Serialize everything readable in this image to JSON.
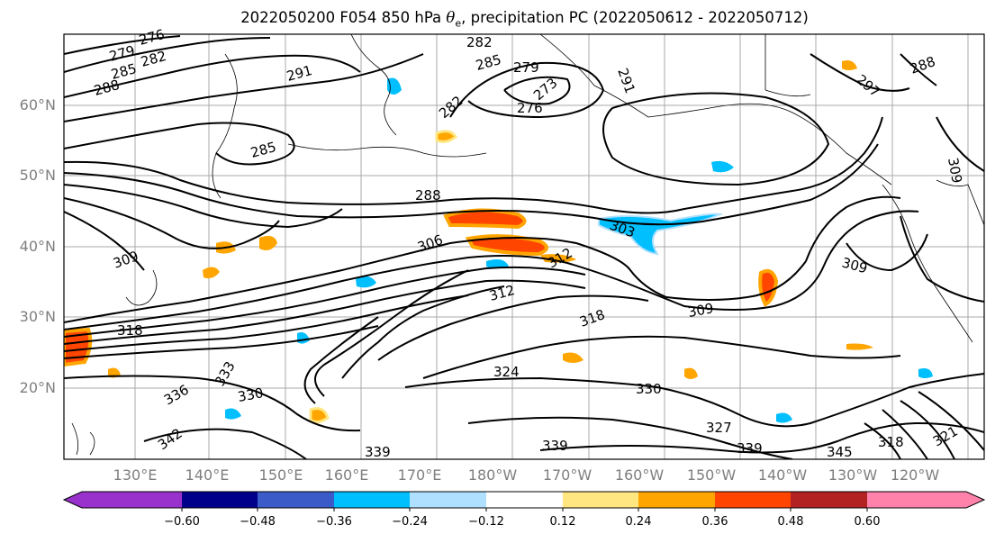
{
  "title": {
    "run": "2022050200 F054 850 hPa",
    "var_symbol": "θ",
    "var_sub": "e",
    "rest": ", precipitation PC (2022050612 - 2022050712)"
  },
  "map": {
    "lat_labels": [
      "60°N",
      "50°N",
      "40°N",
      "30°N",
      "20°N"
    ],
    "lon_labels": [
      "130°E",
      "140°E",
      "150°E",
      "160°E",
      "170°E",
      "180°W",
      "170°W",
      "160°W",
      "150°W",
      "140°W",
      "130°W",
      "120°W"
    ],
    "contour_labels": [
      "279",
      "276",
      "285",
      "282",
      "288",
      "291",
      "282",
      "285",
      "279",
      "273",
      "276",
      "282",
      "291",
      "297",
      "285",
      "288",
      "288",
      "306",
      "303",
      "309",
      "312",
      "318",
      "309",
      "309",
      "312",
      "318",
      "324",
      "330",
      "327",
      "336",
      "330",
      "333",
      "342",
      "339",
      "339",
      "345",
      "339",
      "318",
      "321",
      "309"
    ]
  },
  "colorbar": {
    "ticks": [
      "−0.60",
      "−0.48",
      "−0.36",
      "−0.24",
      "−0.12",
      "0.12",
      "0.24",
      "0.36",
      "0.48",
      "0.60"
    ],
    "colors": [
      "#9932cc",
      "#00008b",
      "#3a5bc8",
      "#00bfff",
      "#b0e0ff",
      "#ffffff",
      "#ffe680",
      "#ffa500",
      "#ff4500",
      "#b22222",
      "#ff82ab"
    ]
  }
}
